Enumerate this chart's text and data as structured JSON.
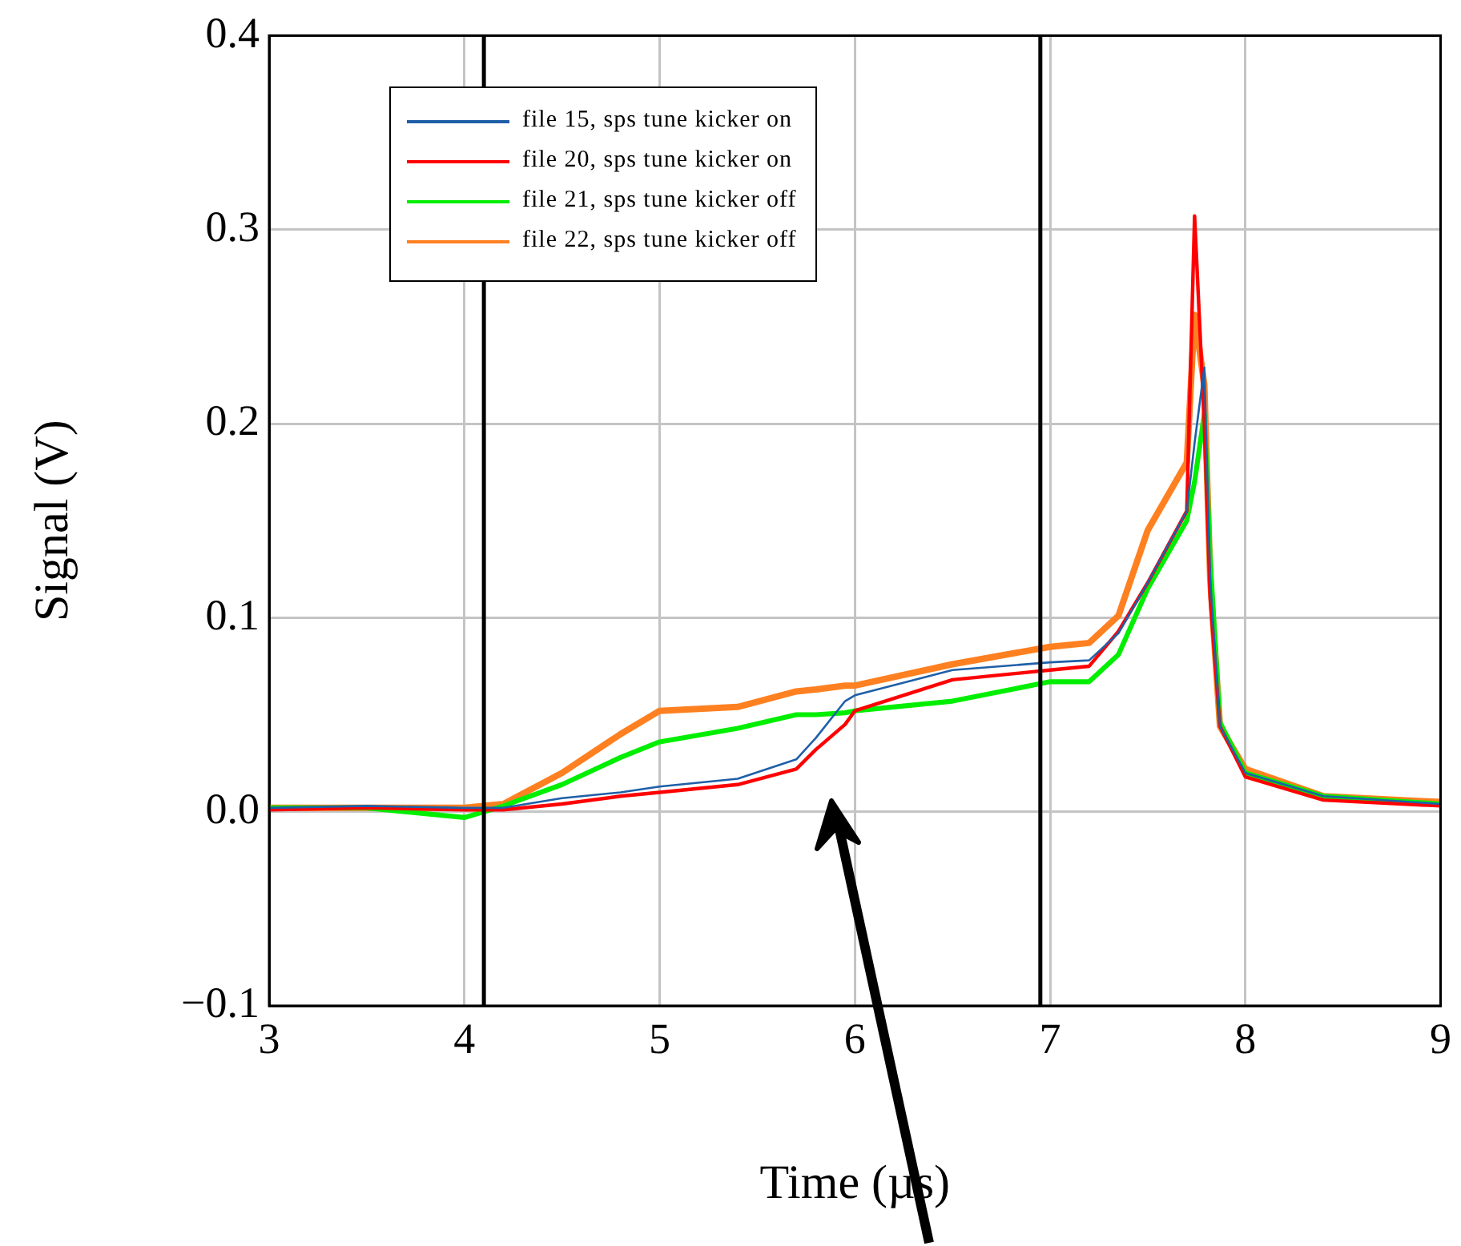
{
  "chart_data": {
    "type": "line",
    "xlabel": "Time (µs)",
    "ylabel": "Signal (V)",
    "x": [
      3,
      3.5,
      4,
      4.2,
      4.5,
      4.8,
      5,
      5.4,
      5.7,
      5.8,
      5.95,
      6,
      6.5,
      7,
      7.2,
      7.35,
      7.5,
      7.7,
      7.74,
      7.79,
      7.82,
      7.87,
      8,
      8.4,
      9
    ],
    "series": [
      {
        "name": "file 15, sps tune kicker on",
        "color": "#1f5fa8",
        "values": [
          0.002,
          0.003,
          0.002,
          0.002,
          0.007,
          0.01,
          0.013,
          0.017,
          0.027,
          0.038,
          0.057,
          0.06,
          0.073,
          0.077,
          0.078,
          0.092,
          0.118,
          0.155,
          0.19,
          0.229,
          0.12,
          0.044,
          0.02,
          0.008,
          0.004
        ]
      },
      {
        "name": "file 20, sps tune kicker on",
        "color": "#ff0000",
        "values": [
          0.001,
          0.002,
          0.001,
          0.001,
          0.004,
          0.008,
          0.01,
          0.014,
          0.022,
          0.032,
          0.045,
          0.052,
          0.068,
          0.073,
          0.075,
          0.093,
          0.118,
          0.155,
          0.307,
          0.2,
          0.11,
          0.044,
          0.018,
          0.006,
          0.003
        ]
      },
      {
        "name": "file 21, sps tune kicker off",
        "color": "#00ee00",
        "values": [
          0.002,
          0.002,
          -0.003,
          0.003,
          0.014,
          0.028,
          0.036,
          0.043,
          0.05,
          0.05,
          0.051,
          0.052,
          0.057,
          0.067,
          0.067,
          0.081,
          0.115,
          0.15,
          0.17,
          0.205,
          0.13,
          0.046,
          0.02,
          0.008,
          0.004
        ]
      },
      {
        "name": "file 22, sps tune kicker off",
        "color": "#ff8020",
        "values": [
          0.002,
          0.002,
          0.002,
          0.004,
          0.02,
          0.04,
          0.052,
          0.054,
          0.062,
          0.063,
          0.065,
          0.065,
          0.076,
          0.085,
          0.087,
          0.101,
          0.145,
          0.18,
          0.256,
          0.22,
          0.12,
          0.044,
          0.022,
          0.008,
          0.005
        ]
      }
    ],
    "xlim": [
      3,
      9
    ],
    "xticks": [
      3,
      4,
      5,
      6,
      7,
      8,
      9
    ],
    "ylim": [
      -0.1,
      0.4
    ],
    "yticks": [
      {
        "value": -0.1,
        "label": "−0.1"
      },
      {
        "value": 0,
        "label": "0.0"
      },
      0.1,
      0.2,
      0.3,
      0.4
    ],
    "ref_lines": [
      {
        "axis": "x",
        "value": 4.1,
        "color": "#000000"
      },
      {
        "axis": "x",
        "value": 6.95,
        "color": "#000000"
      }
    ],
    "grid": true,
    "legend": "top left",
    "marker": "none",
    "line_style": "solid"
  }
}
